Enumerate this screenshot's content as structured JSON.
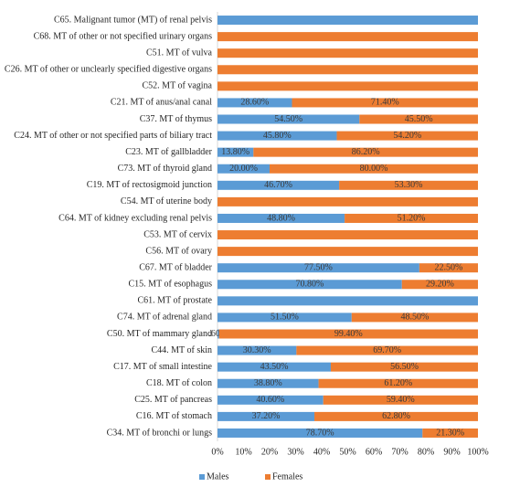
{
  "chart_data": {
    "type": "bar",
    "orientation": "horizontal",
    "stacked": true,
    "categories": [
      "C65. Malignant tumor (MT) of renal pelvis",
      "C68. MT of other or not specified urinary organs",
      "C51. MT of vulva",
      "C26. MT of other or unclearly specified digestive organs",
      "C52. MT of vagina",
      "C21. MT of anus/anal canal",
      "C37. MT of thymus",
      "C24. MT of other or not specified parts of biliary tract",
      "C23. MT of gallbladder",
      "C73. MT of thyroid gland",
      "C19. MT of rectosigmoid junction",
      "C54. MT of uterine body",
      "C64. MT of kidney excluding renal pelvis",
      "C53. MT of cervix",
      "C56. MT of ovary",
      "C67. MT of bladder",
      "C15. MT of esophagus",
      "C61. MT of prostate",
      "C74. MT of adrenal gland",
      "C50. MT of mammary gland",
      "C44. MT of skin",
      "C17. MT of small intestine",
      "C18. MT of colon",
      "C25. MT of pancreas",
      "C16. MT of stomach",
      "C34. MT of bronchi or lungs"
    ],
    "series": [
      {
        "name": "Males",
        "color": "#5b9bd5",
        "values": [
          100,
          0,
          0,
          0,
          0,
          28.6,
          54.5,
          45.8,
          13.8,
          20.0,
          46.7,
          0,
          48.8,
          0,
          0,
          77.5,
          70.8,
          100,
          51.5,
          0.6,
          30.3,
          43.5,
          38.8,
          40.6,
          37.2,
          78.7
        ],
        "value_labels": [
          null,
          null,
          null,
          null,
          null,
          "28.60%",
          "54.50%",
          "45.80%",
          "13.80%",
          "20.00%",
          "46.70%",
          null,
          "48.80%",
          null,
          null,
          "77.50%",
          "70.80%",
          null,
          "51.50%",
          ".60%",
          "30.30%",
          "43.50%",
          "38.80%",
          "40.60%",
          "37.20%",
          "78.70%"
        ]
      },
      {
        "name": "Females",
        "color": "#ed7d31",
        "values": [
          0,
          100,
          100,
          100,
          100,
          71.4,
          45.5,
          54.2,
          86.2,
          80.0,
          53.3,
          100,
          51.2,
          100,
          100,
          22.5,
          29.2,
          0,
          48.5,
          99.4,
          69.7,
          56.5,
          61.2,
          59.4,
          62.8,
          21.3
        ],
        "value_labels": [
          null,
          null,
          null,
          null,
          null,
          "71.40%",
          "45.50%",
          "54.20%",
          "86.20%",
          "80.00%",
          "53.30%",
          null,
          "51.20%",
          null,
          null,
          "22.50%",
          "29.20%",
          null,
          "48.50%",
          "99.40%",
          "69.70%",
          "56.50%",
          "61.20%",
          "59.40%",
          "62.80%",
          "21.30%"
        ]
      }
    ],
    "xlim": [
      0,
      100
    ],
    "xticks": [
      {
        "value": 0,
        "label": "0%"
      },
      {
        "value": 10,
        "label": "10%"
      },
      {
        "value": 20,
        "label": "20%"
      },
      {
        "value": 30,
        "label": "30%"
      },
      {
        "value": 40,
        "label": "40%"
      },
      {
        "value": 50,
        "label": "50%"
      },
      {
        "value": 60,
        "label": "60%"
      },
      {
        "value": 70,
        "label": "70%"
      },
      {
        "value": 80,
        "label": "80%"
      },
      {
        "value": 90,
        "label": "90%"
      },
      {
        "value": 100,
        "label": "100%"
      }
    ],
    "grid": false,
    "legend": "bottom"
  }
}
